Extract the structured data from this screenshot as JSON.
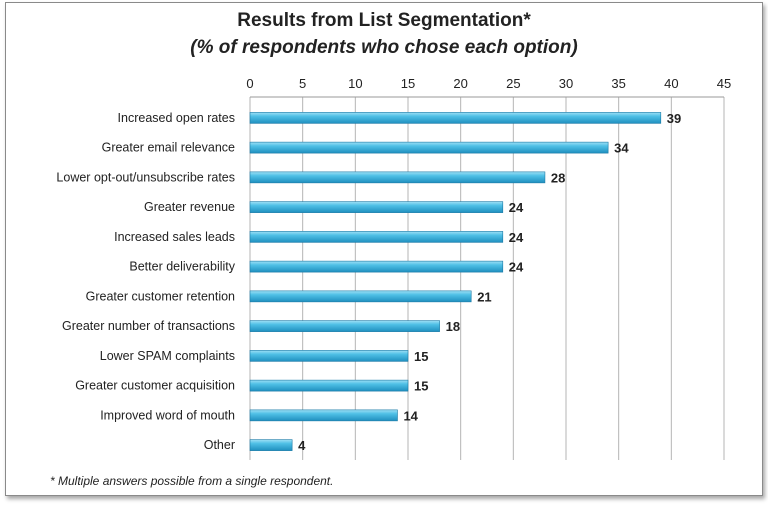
{
  "chart_data": {
    "type": "bar",
    "orientation": "horizontal",
    "title": "Results from List Segmentation*",
    "subtitle": "(% of respondents who chose each option)",
    "categories": [
      "Increased open rates",
      "Greater email relevance",
      "Lower opt-out/unsubscribe rates",
      "Greater revenue",
      "Increased sales leads",
      "Better deliverability",
      "Greater customer retention",
      "Greater number of transactions",
      "Lower SPAM complaints",
      "Greater customer acquisition",
      "Improved word of mouth",
      "Other"
    ],
    "values": [
      39,
      34,
      28,
      24,
      24,
      24,
      21,
      18,
      15,
      15,
      14,
      4
    ],
    "xlim": [
      0,
      45
    ],
    "xticks": [
      0,
      5,
      10,
      15,
      20,
      25,
      30,
      35,
      40,
      45
    ],
    "x_axis_position": "top",
    "grid": true,
    "data_labels": true,
    "bar_color": "#3aaed8",
    "footnote": "* Multiple answers possible from a single respondent."
  }
}
